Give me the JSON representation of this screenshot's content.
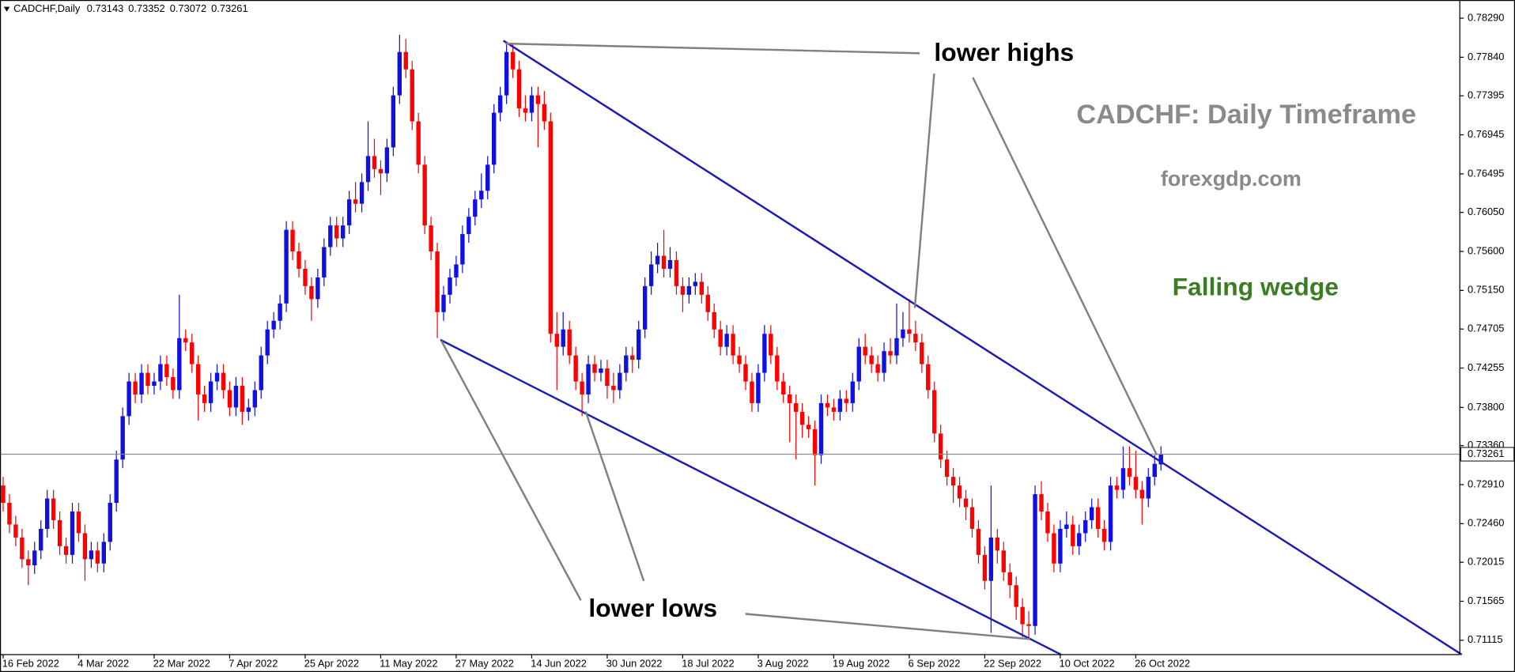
{
  "chart_data": {
    "type": "candlestick",
    "symbol": "CADCHF,Daily",
    "up_color": "#1010e0",
    "down_color": "#ff0000",
    "annotations": [
      "lower highs",
      "lower lows",
      "CADCHF: Daily Timeframe",
      "forexgdp.com",
      "Falling wedge"
    ],
    "xlim": [
      -0.5,
      231.5
    ],
    "xticks": [
      {
        "value": 0,
        "label": "16 Feb 2022"
      },
      {
        "value": 12,
        "label": "4 Mar 2022"
      },
      {
        "value": 24,
        "label": "22 Mar 2022"
      },
      {
        "value": 36,
        "label": "7 Apr 2022"
      },
      {
        "value": 48,
        "label": "25 Apr 2022"
      },
      {
        "value": 60,
        "label": "11 May 2022"
      },
      {
        "value": 72,
        "label": "27 May 2022"
      },
      {
        "value": 84,
        "label": "14 Jun 2022"
      },
      {
        "value": 96,
        "label": "30 Jun 2022"
      },
      {
        "value": 108,
        "label": "18 Jul 2022"
      },
      {
        "value": 120,
        "label": "3 Aug 2022"
      },
      {
        "value": 132,
        "label": "19 Aug 2022"
      },
      {
        "value": 144,
        "label": "6 Sep 2022"
      },
      {
        "value": 156,
        "label": "22 Sep 2022"
      },
      {
        "value": 168,
        "label": "10 Oct 2022"
      },
      {
        "value": 180,
        "label": "26 Oct 2022"
      }
    ],
    "ylim": [
      0.7095,
      0.785
    ],
    "yticks": [
      {
        "value": 0.7829,
        "label": "0.78290"
      },
      {
        "value": 0.7784,
        "label": "0.77840"
      },
      {
        "value": 0.77395,
        "label": "0.77395"
      },
      {
        "value": 0.76945,
        "label": "0.76945"
      },
      {
        "value": 0.76495,
        "label": "0.76495"
      },
      {
        "value": 0.7605,
        "label": "0.76050"
      },
      {
        "value": 0.756,
        "label": "0.75600"
      },
      {
        "value": 0.7515,
        "label": "0.75150"
      },
      {
        "value": 0.74705,
        "label": "0.74705"
      },
      {
        "value": 0.74255,
        "label": "0.74255"
      },
      {
        "value": 0.738,
        "label": "0.73800"
      },
      {
        "value": 0.7336,
        "label": "0.73360"
      },
      {
        "value": 0.7291,
        "label": "0.72910"
      },
      {
        "value": 0.7246,
        "label": "0.72460"
      },
      {
        "value": 0.72015,
        "label": "0.72015"
      },
      {
        "value": 0.71565,
        "label": "0.71565"
      },
      {
        "value": 0.71115,
        "label": "0.71115"
      }
    ],
    "open": [
      0.729,
      0.727,
      0.7245,
      0.723,
      0.7205,
      0.7198,
      0.7215,
      0.724,
      0.7275,
      0.725,
      0.722,
      0.721,
      0.726,
      0.7235,
      0.7205,
      0.7215,
      0.72,
      0.7225,
      0.727,
      0.732,
      0.737,
      0.741,
      0.7395,
      0.742,
      0.7405,
      0.741,
      0.743,
      0.7415,
      0.74,
      0.746,
      0.7455,
      0.743,
      0.7395,
      0.7385,
      0.741,
      0.742,
      0.74,
      0.738,
      0.7405,
      0.7375,
      0.738,
      0.74,
      0.744,
      0.747,
      0.748,
      0.75,
      0.7585,
      0.756,
      0.754,
      0.752,
      0.7505,
      0.753,
      0.7565,
      0.759,
      0.7575,
      0.759,
      0.762,
      0.7615,
      0.764,
      0.767,
      0.7655,
      0.765,
      0.768,
      0.774,
      0.779,
      0.777,
      0.771,
      0.766,
      0.759,
      0.756,
      0.749,
      0.751,
      0.753,
      0.7545,
      0.758,
      0.76,
      0.762,
      0.763,
      0.766,
      0.772,
      0.774,
      0.779,
      0.777,
      0.7725,
      0.772,
      0.774,
      0.773,
      0.771,
      0.7465,
      0.745,
      0.747,
      0.744,
      0.741,
      0.7395,
      0.743,
      0.742,
      0.7425,
      0.7405,
      0.74,
      0.742,
      0.744,
      0.7435,
      0.747,
      0.752,
      0.7545,
      0.7555,
      0.754,
      0.755,
      0.752,
      0.751,
      0.752,
      0.7525,
      0.751,
      0.749,
      0.747,
      0.745,
      0.7465,
      0.744,
      0.743,
      0.741,
      0.7385,
      0.742,
      0.7465,
      0.744,
      0.741,
      0.7395,
      0.7385,
      0.7375,
      0.736,
      0.7355,
      0.7325,
      0.7385,
      0.738,
      0.7375,
      0.739,
      0.7385,
      0.741,
      0.745,
      0.744,
      0.743,
      0.742,
      0.7445,
      0.744,
      0.746,
      0.747,
      0.7465,
      0.7455,
      0.743,
      0.74,
      0.735,
      0.732,
      0.73,
      0.729,
      0.7275,
      0.7265,
      0.724,
      0.721,
      0.718,
      0.723,
      0.7215,
      0.719,
      0.7175,
      0.715,
      0.713,
      0.7128,
      0.728,
      0.726,
      0.7235,
      0.72,
      0.724,
      0.7245,
      0.722,
      0.7235,
      0.725,
      0.7265,
      0.724,
      0.7225,
      0.729,
      0.7285,
      0.731,
      0.73,
      0.7285,
      0.7275,
      0.73,
      0.73143
    ],
    "high": [
      0.73,
      0.728,
      0.7255,
      0.724,
      0.7215,
      0.7225,
      0.725,
      0.7285,
      0.7285,
      0.726,
      0.723,
      0.727,
      0.727,
      0.7245,
      0.7225,
      0.7225,
      0.7235,
      0.728,
      0.733,
      0.738,
      0.742,
      0.742,
      0.743,
      0.743,
      0.742,
      0.744,
      0.744,
      0.7425,
      0.751,
      0.747,
      0.7465,
      0.744,
      0.7405,
      0.742,
      0.743,
      0.743,
      0.741,
      0.7415,
      0.7415,
      0.739,
      0.741,
      0.745,
      0.748,
      0.749,
      0.751,
      0.7595,
      0.7595,
      0.757,
      0.755,
      0.753,
      0.754,
      0.7575,
      0.76,
      0.76,
      0.76,
      0.763,
      0.764,
      0.765,
      0.771,
      0.769,
      0.7665,
      0.769,
      0.775,
      0.781,
      0.7805,
      0.778,
      0.772,
      0.767,
      0.76,
      0.757,
      0.752,
      0.754,
      0.7555,
      0.759,
      0.761,
      0.763,
      0.765,
      0.767,
      0.773,
      0.775,
      0.78,
      0.78,
      0.778,
      0.774,
      0.775,
      0.775,
      0.7745,
      0.772,
      0.749,
      0.749,
      0.748,
      0.745,
      0.742,
      0.744,
      0.744,
      0.7435,
      0.7435,
      0.742,
      0.743,
      0.745,
      0.745,
      0.748,
      0.753,
      0.756,
      0.757,
      0.7585,
      0.7565,
      0.756,
      0.753,
      0.753,
      0.7535,
      0.7535,
      0.752,
      0.75,
      0.748,
      0.7475,
      0.7475,
      0.745,
      0.744,
      0.742,
      0.743,
      0.7475,
      0.7475,
      0.745,
      0.742,
      0.7405,
      0.7395,
      0.7385,
      0.737,
      0.7365,
      0.7395,
      0.7395,
      0.739,
      0.74,
      0.74,
      0.742,
      0.746,
      0.7465,
      0.745,
      0.744,
      0.7455,
      0.746,
      0.75,
      0.749,
      0.7505,
      0.748,
      0.7465,
      0.744,
      0.741,
      0.736,
      0.733,
      0.731,
      0.73,
      0.7285,
      0.7275,
      0.725,
      0.722,
      0.729,
      0.724,
      0.7225,
      0.72,
      0.7185,
      0.716,
      0.7145,
      0.729,
      0.7295,
      0.727,
      0.7245,
      0.725,
      0.726,
      0.7255,
      0.7245,
      0.726,
      0.7275,
      0.7275,
      0.725,
      0.73,
      0.73,
      0.7335,
      0.7335,
      0.733,
      0.7295,
      0.731,
      0.7325,
      0.73352
    ],
    "low": [
      0.726,
      0.7235,
      0.722,
      0.7195,
      0.7175,
      0.7188,
      0.7205,
      0.723,
      0.724,
      0.721,
      0.72,
      0.72,
      0.7225,
      0.718,
      0.7195,
      0.719,
      0.719,
      0.7215,
      0.726,
      0.731,
      0.736,
      0.7385,
      0.7385,
      0.7395,
      0.7395,
      0.74,
      0.7405,
      0.739,
      0.739,
      0.7445,
      0.742,
      0.7365,
      0.7375,
      0.7375,
      0.74,
      0.739,
      0.737,
      0.737,
      0.736,
      0.7365,
      0.737,
      0.739,
      0.743,
      0.746,
      0.747,
      0.749,
      0.755,
      0.753,
      0.751,
      0.748,
      0.7495,
      0.752,
      0.7555,
      0.7565,
      0.7565,
      0.758,
      0.7605,
      0.7605,
      0.763,
      0.7645,
      0.7625,
      0.764,
      0.767,
      0.773,
      0.776,
      0.77,
      0.765,
      0.758,
      0.755,
      0.746,
      0.748,
      0.75,
      0.752,
      0.7535,
      0.757,
      0.759,
      0.761,
      0.762,
      0.765,
      0.771,
      0.773,
      0.776,
      0.7715,
      0.771,
      0.771,
      0.768,
      0.77,
      0.7455,
      0.74,
      0.744,
      0.743,
      0.74,
      0.737,
      0.7385,
      0.741,
      0.741,
      0.739,
      0.7385,
      0.739,
      0.741,
      0.742,
      0.7425,
      0.746,
      0.751,
      0.7535,
      0.753,
      0.753,
      0.751,
      0.749,
      0.75,
      0.751,
      0.75,
      0.748,
      0.746,
      0.744,
      0.744,
      0.743,
      0.742,
      0.74,
      0.7375,
      0.7375,
      0.741,
      0.743,
      0.74,
      0.7385,
      0.734,
      0.732,
      0.7345,
      0.7345,
      0.729,
      0.7315,
      0.737,
      0.7365,
      0.7365,
      0.7375,
      0.7375,
      0.74,
      0.743,
      0.742,
      0.741,
      0.741,
      0.743,
      0.743,
      0.745,
      0.7455,
      0.7445,
      0.742,
      0.739,
      0.734,
      0.731,
      0.729,
      0.727,
      0.7265,
      0.725,
      0.723,
      0.72,
      0.717,
      0.712,
      0.72,
      0.718,
      0.716,
      0.7135,
      0.7115,
      0.7112,
      0.7118,
      0.725,
      0.7225,
      0.719,
      0.719,
      0.723,
      0.721,
      0.721,
      0.7225,
      0.724,
      0.723,
      0.7215,
      0.7215,
      0.7275,
      0.7275,
      0.729,
      0.7275,
      0.7245,
      0.7265,
      0.729,
      0.73072
    ],
    "close": [
      0.727,
      0.7245,
      0.723,
      0.7205,
      0.7198,
      0.7215,
      0.724,
      0.7275,
      0.725,
      0.722,
      0.721,
      0.726,
      0.7235,
      0.7205,
      0.7215,
      0.72,
      0.7225,
      0.727,
      0.732,
      0.737,
      0.741,
      0.7395,
      0.742,
      0.7405,
      0.741,
      0.743,
      0.7415,
      0.74,
      0.746,
      0.7455,
      0.743,
      0.7395,
      0.7385,
      0.741,
      0.742,
      0.74,
      0.738,
      0.7405,
      0.7375,
      0.738,
      0.74,
      0.744,
      0.747,
      0.748,
      0.75,
      0.7585,
      0.756,
      0.754,
      0.752,
      0.7505,
      0.753,
      0.7565,
      0.759,
      0.7575,
      0.759,
      0.762,
      0.7615,
      0.764,
      0.767,
      0.7655,
      0.765,
      0.768,
      0.774,
      0.779,
      0.777,
      0.771,
      0.766,
      0.759,
      0.756,
      0.749,
      0.751,
      0.753,
      0.7545,
      0.758,
      0.76,
      0.762,
      0.763,
      0.766,
      0.772,
      0.774,
      0.779,
      0.777,
      0.7725,
      0.772,
      0.774,
      0.773,
      0.771,
      0.7465,
      0.745,
      0.747,
      0.744,
      0.741,
      0.7395,
      0.743,
      0.742,
      0.7425,
      0.7405,
      0.74,
      0.742,
      0.744,
      0.7435,
      0.747,
      0.752,
      0.7545,
      0.7555,
      0.754,
      0.755,
      0.752,
      0.751,
      0.752,
      0.7525,
      0.751,
      0.749,
      0.747,
      0.745,
      0.7465,
      0.744,
      0.743,
      0.741,
      0.7385,
      0.742,
      0.7465,
      0.744,
      0.741,
      0.7395,
      0.7385,
      0.7375,
      0.736,
      0.7355,
      0.7325,
      0.7385,
      0.738,
      0.7375,
      0.739,
      0.7385,
      0.741,
      0.745,
      0.744,
      0.743,
      0.742,
      0.7445,
      0.744,
      0.746,
      0.747,
      0.7465,
      0.7455,
      0.743,
      0.74,
      0.735,
      0.732,
      0.73,
      0.729,
      0.7275,
      0.7265,
      0.724,
      0.721,
      0.718,
      0.723,
      0.7215,
      0.719,
      0.7175,
      0.715,
      0.713,
      0.7128,
      0.728,
      0.726,
      0.7235,
      0.72,
      0.724,
      0.7245,
      0.722,
      0.7235,
      0.725,
      0.7265,
      0.724,
      0.7225,
      0.729,
      0.7285,
      0.731,
      0.73,
      0.7285,
      0.7275,
      0.73,
      0.7315,
      0.73261
    ]
  }
}
